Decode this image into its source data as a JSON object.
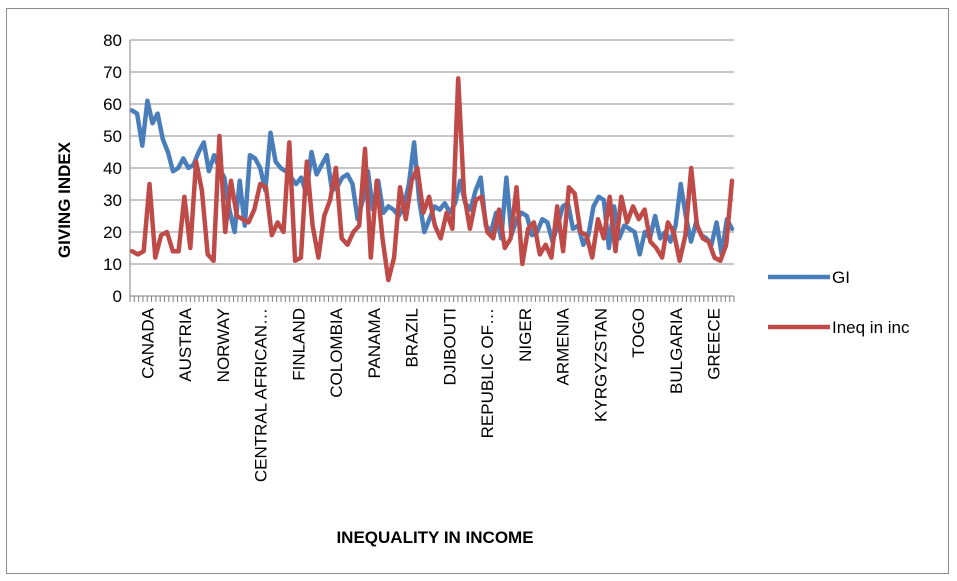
{
  "chart_data": {
    "type": "line",
    "title": "",
    "xlabel": "INEQUALITY IN INCOME",
    "ylabel": "GIVING INDEX",
    "ylim": [
      0,
      80
    ],
    "yticks": [
      "0",
      "10",
      "20",
      "30",
      "40",
      "50",
      "60",
      "70",
      "80"
    ],
    "grid": true,
    "legend": "right",
    "category_count": 140,
    "tick_labels": [
      {
        "index": 4,
        "label": "CANADA"
      },
      {
        "index": 14,
        "label": "AUSTRIA"
      },
      {
        "index": 24,
        "label": "NORWAY"
      },
      {
        "index": 34,
        "label": "CENTRAL AFRICAN…"
      },
      {
        "index": 44,
        "label": "FINLAND"
      },
      {
        "index": 54,
        "label": "COLOMBIA"
      },
      {
        "index": 64,
        "label": "PANAMA"
      },
      {
        "index": 74,
        "label": "BRAZIL"
      },
      {
        "index": 84,
        "label": "DJIBOUTI"
      },
      {
        "index": 94,
        "label": "REPUBLIC OF…"
      },
      {
        "index": 104,
        "label": "NIGER"
      },
      {
        "index": 114,
        "label": "ARMENIA"
      },
      {
        "index": 124,
        "label": "KYRGYZSTAN"
      },
      {
        "index": 134,
        "label": "TOGO"
      },
      {
        "index": 144,
        "label": "BULGARIA"
      },
      {
        "index": 154,
        "label": "GREECE"
      }
    ],
    "series": [
      {
        "name": "GI",
        "color": "#4a7ebb",
        "anchors": [
          [
            0,
            58
          ],
          [
            1,
            57
          ],
          [
            2,
            47
          ],
          [
            3,
            61
          ],
          [
            4,
            54
          ],
          [
            5,
            57
          ],
          [
            6,
            49
          ],
          [
            7,
            45
          ],
          [
            8,
            39
          ],
          [
            9,
            40
          ],
          [
            10,
            43
          ],
          [
            11,
            40
          ],
          [
            12,
            41
          ],
          [
            13,
            45
          ],
          [
            14,
            48
          ],
          [
            15,
            39
          ],
          [
            16,
            44
          ],
          [
            17,
            40
          ],
          [
            18,
            37
          ],
          [
            19,
            27
          ],
          [
            20,
            20
          ],
          [
            21,
            36
          ],
          [
            22,
            22
          ],
          [
            23,
            44
          ],
          [
            24,
            43
          ],
          [
            25,
            40
          ],
          [
            26,
            33
          ],
          [
            27,
            51
          ],
          [
            28,
            42
          ],
          [
            29,
            40
          ],
          [
            30,
            39
          ],
          [
            31,
            37
          ],
          [
            32,
            35
          ],
          [
            33,
            37
          ],
          [
            34,
            32
          ],
          [
            35,
            45
          ],
          [
            36,
            38
          ],
          [
            37,
            41
          ],
          [
            38,
            44
          ],
          [
            39,
            33
          ],
          [
            40,
            34
          ],
          [
            41,
            37
          ],
          [
            42,
            38
          ],
          [
            43,
            35
          ],
          [
            44,
            24
          ],
          [
            45,
            30
          ],
          [
            46,
            39
          ],
          [
            47,
            27
          ],
          [
            48,
            36
          ],
          [
            49,
            26
          ],
          [
            50,
            28
          ],
          [
            51,
            27
          ],
          [
            52,
            25
          ],
          [
            53,
            28
          ],
          [
            54,
            35
          ],
          [
            55,
            48
          ],
          [
            56,
            30
          ],
          [
            57,
            20
          ],
          [
            58,
            24
          ],
          [
            59,
            28
          ],
          [
            60,
            27
          ],
          [
            61,
            29
          ],
          [
            62,
            26
          ],
          [
            63,
            29
          ],
          [
            64,
            36
          ],
          [
            65,
            29
          ],
          [
            66,
            27
          ],
          [
            67,
            33
          ],
          [
            68,
            37
          ],
          [
            69,
            22
          ],
          [
            70,
            20
          ],
          [
            71,
            26
          ],
          [
            72,
            18
          ],
          [
            73,
            37
          ],
          [
            74,
            19
          ],
          [
            75,
            24
          ],
          [
            76,
            26
          ],
          [
            77,
            25
          ],
          [
            78,
            19
          ],
          [
            79,
            20
          ],
          [
            80,
            24
          ],
          [
            81,
            23
          ],
          [
            82,
            17
          ],
          [
            83,
            22
          ],
          [
            84,
            28
          ],
          [
            85,
            29
          ],
          [
            86,
            21
          ],
          [
            87,
            22
          ],
          [
            88,
            16
          ],
          [
            89,
            19
          ],
          [
            90,
            28
          ],
          [
            91,
            31
          ],
          [
            92,
            30
          ],
          [
            93,
            15
          ],
          [
            94,
            28
          ],
          [
            95,
            18
          ],
          [
            96,
            22
          ],
          [
            97,
            21
          ],
          [
            98,
            20
          ],
          [
            99,
            13
          ],
          [
            100,
            20
          ],
          [
            101,
            18
          ],
          [
            102,
            25
          ],
          [
            103,
            18
          ],
          [
            104,
            20
          ],
          [
            105,
            17
          ],
          [
            106,
            22
          ],
          [
            107,
            35
          ],
          [
            108,
            25
          ],
          [
            109,
            17
          ],
          [
            110,
            23
          ],
          [
            111,
            19
          ],
          [
            112,
            18
          ],
          [
            113,
            16
          ],
          [
            114,
            23
          ],
          [
            115,
            13
          ],
          [
            116,
            24
          ],
          [
            117,
            21
          ]
        ]
      },
      {
        "name": "Ineq in inc",
        "color": "#be4b48",
        "anchors": [
          [
            0,
            14
          ],
          [
            1,
            13
          ],
          [
            2,
            14
          ],
          [
            3,
            35
          ],
          [
            4,
            12
          ],
          [
            5,
            19
          ],
          [
            6,
            20
          ],
          [
            7,
            14
          ],
          [
            8,
            14
          ],
          [
            9,
            31
          ],
          [
            10,
            15
          ],
          [
            11,
            42
          ],
          [
            12,
            33
          ],
          [
            13,
            13
          ],
          [
            14,
            11
          ],
          [
            15,
            50
          ],
          [
            16,
            20
          ],
          [
            17,
            36
          ],
          [
            18,
            25
          ],
          [
            19,
            24
          ],
          [
            20,
            23
          ],
          [
            21,
            27
          ],
          [
            22,
            35
          ],
          [
            23,
            34
          ],
          [
            24,
            19
          ],
          [
            25,
            23
          ],
          [
            26,
            20
          ],
          [
            27,
            48
          ],
          [
            28,
            11
          ],
          [
            29,
            12
          ],
          [
            30,
            42
          ],
          [
            31,
            22
          ],
          [
            32,
            12
          ],
          [
            33,
            25
          ],
          [
            34,
            30
          ],
          [
            35,
            40
          ],
          [
            36,
            18
          ],
          [
            37,
            16
          ],
          [
            38,
            20
          ],
          [
            39,
            22
          ],
          [
            40,
            46
          ],
          [
            41,
            12
          ],
          [
            42,
            36
          ],
          [
            43,
            18
          ],
          [
            44,
            5
          ],
          [
            45,
            12
          ],
          [
            46,
            34
          ],
          [
            47,
            24
          ],
          [
            48,
            36
          ],
          [
            49,
            40
          ],
          [
            50,
            26
          ],
          [
            51,
            31
          ],
          [
            52,
            22
          ],
          [
            53,
            18
          ],
          [
            54,
            26
          ],
          [
            55,
            21
          ],
          [
            56,
            68
          ],
          [
            57,
            32
          ],
          [
            58,
            21
          ],
          [
            59,
            30
          ],
          [
            60,
            31
          ],
          [
            61,
            20
          ],
          [
            62,
            18
          ],
          [
            63,
            27
          ],
          [
            64,
            15
          ],
          [
            65,
            18
          ],
          [
            66,
            34
          ],
          [
            67,
            10
          ],
          [
            68,
            21
          ],
          [
            69,
            23
          ],
          [
            70,
            13
          ],
          [
            71,
            16
          ],
          [
            72,
            12
          ],
          [
            73,
            28
          ],
          [
            74,
            14
          ],
          [
            75,
            34
          ],
          [
            76,
            32
          ],
          [
            77,
            20
          ],
          [
            78,
            19
          ],
          [
            79,
            12
          ],
          [
            80,
            24
          ],
          [
            81,
            18
          ],
          [
            82,
            31
          ],
          [
            83,
            14
          ],
          [
            84,
            31
          ],
          [
            85,
            23
          ],
          [
            86,
            28
          ],
          [
            87,
            24
          ],
          [
            88,
            27
          ],
          [
            89,
            17
          ],
          [
            90,
            15
          ],
          [
            91,
            12
          ],
          [
            92,
            23
          ],
          [
            93,
            20
          ],
          [
            94,
            11
          ],
          [
            95,
            19
          ],
          [
            96,
            40
          ],
          [
            97,
            22
          ],
          [
            98,
            18
          ],
          [
            99,
            17
          ],
          [
            100,
            12
          ],
          [
            101,
            11
          ],
          [
            102,
            16
          ],
          [
            103,
            36
          ]
        ]
      }
    ]
  }
}
